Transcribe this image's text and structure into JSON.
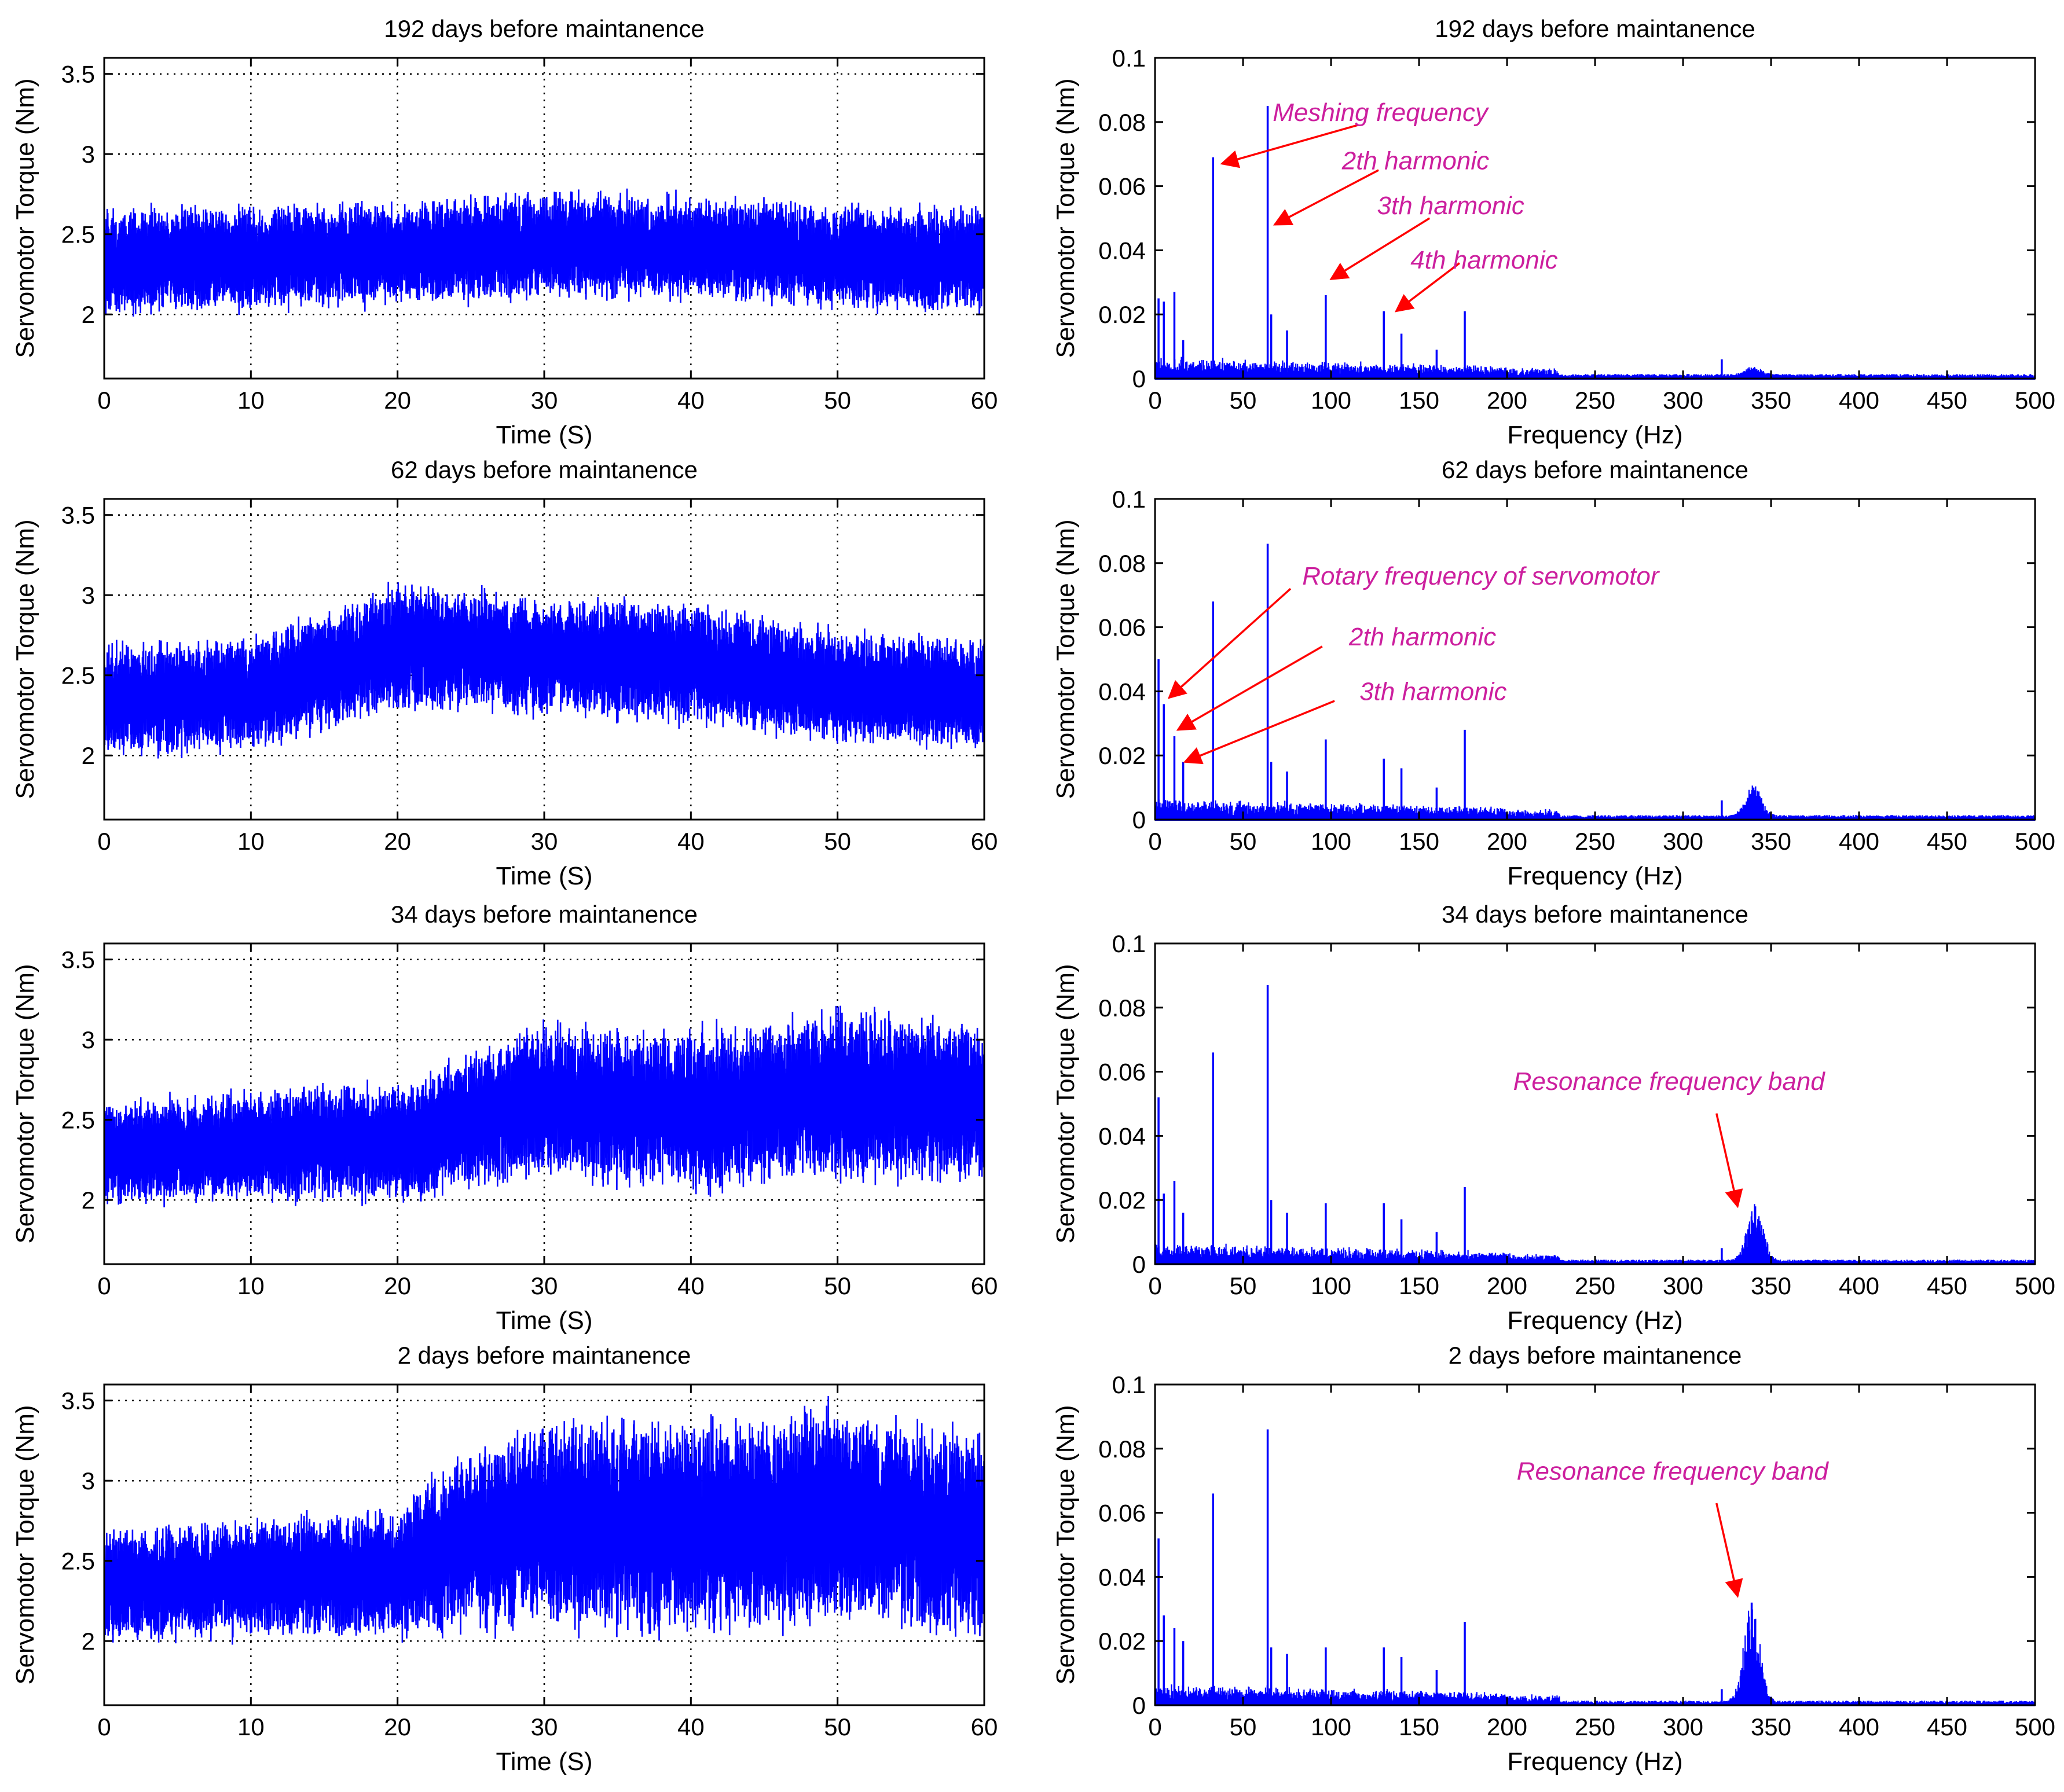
{
  "colors": {
    "signal": "#0000ff",
    "annotation_text": "#cc1f9e",
    "arrow": "#ff0000",
    "axes": "#000000",
    "grid": "#000000"
  },
  "chart_data": [
    {
      "type": "line",
      "title": "192 days before maintanence",
      "xlabel": "Time (S)",
      "ylabel": "Servomotor Torque (Nm)",
      "xlim": [
        0,
        60
      ],
      "ylim": [
        1.6,
        3.6
      ],
      "xticks": [
        "0",
        "10",
        "20",
        "30",
        "40",
        "50",
        "60"
      ],
      "xtick_values": [
        0,
        10,
        20,
        30,
        40,
        50,
        60
      ],
      "yticks": [
        "2",
        "2.5",
        "3",
        "3.5"
      ],
      "ytick_values": [
        2,
        2.5,
        3,
        3.5
      ],
      "grid": true,
      "series": [
        {
          "trend_x": [
            0,
            10,
            20,
            30,
            40,
            50,
            60
          ],
          "trend_y": [
            2.33,
            2.36,
            2.38,
            2.44,
            2.42,
            2.36,
            2.34
          ],
          "spread": [
            0.3,
            0.3,
            0.3,
            0.3,
            0.3,
            0.3,
            0.3
          ]
        }
      ],
      "annotations": []
    },
    {
      "type": "line",
      "title": "192 days before maintanence",
      "xlabel": "Frequency (Hz)",
      "ylabel": "Servomotor Torque (Nm)",
      "xlim": [
        0,
        500
      ],
      "ylim": [
        0,
        0.1
      ],
      "xticks": [
        "0",
        "50",
        "100",
        "150",
        "200",
        "250",
        "300",
        "350",
        "400",
        "450",
        "500"
      ],
      "xtick_values": [
        0,
        50,
        100,
        150,
        200,
        250,
        300,
        350,
        400,
        450,
        500
      ],
      "yticks": [
        "0",
        "0.02",
        "0.04",
        "0.06",
        "0.08",
        "0.1"
      ],
      "ytick_values": [
        0,
        0.02,
        0.04,
        0.06,
        0.08,
        0.1
      ],
      "grid": false,
      "series": [
        {
          "peaks_x": [
            2,
            5,
            11,
            16,
            33,
            64,
            66,
            75,
            97,
            130,
            140,
            160,
            176,
            322,
            340
          ],
          "peaks_y": [
            0.025,
            0.024,
            0.027,
            0.012,
            0.069,
            0.085,
            0.02,
            0.015,
            0.026,
            0.021,
            0.014,
            0.009,
            0.021,
            0.006,
            0.003
          ]
        }
      ],
      "annotations": [
        {
          "text": "Meshing frequency",
          "text_x": 128,
          "text_y": 0.083,
          "arrow_from": [
            115,
            0.079
          ],
          "arrow_to": [
            38,
            0.067
          ]
        },
        {
          "text": "2th harmonic",
          "text_x": 148,
          "text_y": 0.068,
          "arrow_from": [
            127,
            0.065
          ],
          "arrow_to": [
            68,
            0.048
          ]
        },
        {
          "text": "3th harmonic",
          "text_x": 168,
          "text_y": 0.054,
          "arrow_from": [
            156,
            0.05
          ],
          "arrow_to": [
            100,
            0.031
          ]
        },
        {
          "text": "4th harmonic",
          "text_x": 187,
          "text_y": 0.037,
          "arrow_from": [
            173,
            0.036
          ],
          "arrow_to": [
            137,
            0.021
          ]
        }
      ]
    },
    {
      "type": "line",
      "title": "62 days before maintanence",
      "xlabel": "Time (S)",
      "ylabel": "Servomotor Torque (Nm)",
      "xlim": [
        0,
        60
      ],
      "ylim": [
        1.6,
        3.6
      ],
      "xticks": [
        "0",
        "10",
        "20",
        "30",
        "40",
        "50",
        "60"
      ],
      "xtick_values": [
        0,
        10,
        20,
        30,
        40,
        50,
        60
      ],
      "yticks": [
        "2",
        "2.5",
        "3",
        "3.5"
      ],
      "ytick_values": [
        2,
        2.5,
        3,
        3.5
      ],
      "grid": true,
      "series": [
        {
          "trend_x": [
            0,
            10,
            20,
            30,
            40,
            50,
            60
          ],
          "trend_y": [
            2.35,
            2.38,
            2.68,
            2.62,
            2.58,
            2.42,
            2.38
          ],
          "spread": [
            0.32,
            0.32,
            0.36,
            0.34,
            0.34,
            0.33,
            0.32
          ]
        }
      ],
      "annotations": []
    },
    {
      "type": "line",
      "title": "62 days before maintanence",
      "xlabel": "Frequency (Hz)",
      "ylabel": "Servomotor Torque (Nm)",
      "xlim": [
        0,
        500
      ],
      "ylim": [
        0,
        0.1
      ],
      "xticks": [
        "0",
        "50",
        "100",
        "150",
        "200",
        "250",
        "300",
        "350",
        "400",
        "450",
        "500"
      ],
      "xtick_values": [
        0,
        50,
        100,
        150,
        200,
        250,
        300,
        350,
        400,
        450,
        500
      ],
      "yticks": [
        "0",
        "0.02",
        "0.04",
        "0.06",
        "0.08",
        "0.1"
      ],
      "ytick_values": [
        0,
        0.02,
        0.04,
        0.06,
        0.08,
        0.1
      ],
      "grid": false,
      "series": [
        {
          "peaks_x": [
            2,
            5,
            11,
            16,
            33,
            64,
            66,
            75,
            97,
            130,
            140,
            160,
            176,
            322,
            340
          ],
          "peaks_y": [
            0.05,
            0.036,
            0.026,
            0.018,
            0.068,
            0.086,
            0.018,
            0.015,
            0.025,
            0.019,
            0.016,
            0.01,
            0.028,
            0.006,
            0.01
          ]
        }
      ],
      "annotations": [
        {
          "text": "Rotary frequency of servomotor",
          "text_x": 185,
          "text_y": 0.076,
          "arrow_from": [
            77,
            0.072
          ],
          "arrow_to": [
            8,
            0.038
          ]
        },
        {
          "text": "2th harmonic",
          "text_x": 152,
          "text_y": 0.057,
          "arrow_from": [
            95,
            0.054
          ],
          "arrow_to": [
            13,
            0.028
          ]
        },
        {
          "text": "3th harmonic",
          "text_x": 158,
          "text_y": 0.04,
          "arrow_from": [
            102,
            0.037
          ],
          "arrow_to": [
            17,
            0.018
          ]
        }
      ]
    },
    {
      "type": "line",
      "title": "34 days before maintanence",
      "xlabel": "Time (S)",
      "ylabel": "Servomotor Torque (Nm)",
      "xlim": [
        0,
        60
      ],
      "ylim": [
        1.6,
        3.6
      ],
      "xticks": [
        "0",
        "10",
        "20",
        "30",
        "40",
        "50",
        "60"
      ],
      "xtick_values": [
        0,
        10,
        20,
        30,
        40,
        50,
        60
      ],
      "yticks": [
        "2",
        "2.5",
        "3",
        "3.5"
      ],
      "ytick_values": [
        2,
        2.5,
        3,
        3.5
      ],
      "grid": true,
      "series": [
        {
          "trend_x": [
            0,
            10,
            20,
            30,
            40,
            50,
            60
          ],
          "trend_y": [
            2.3,
            2.34,
            2.36,
            2.62,
            2.55,
            2.66,
            2.6
          ],
          "spread": [
            0.3,
            0.32,
            0.34,
            0.44,
            0.46,
            0.5,
            0.46
          ]
        }
      ],
      "annotations": []
    },
    {
      "type": "line",
      "title": "34 days before maintanence",
      "xlabel": "Frequency (Hz)",
      "ylabel": "Servomotor Torque (Nm)",
      "xlim": [
        0,
        500
      ],
      "ylim": [
        0,
        0.1
      ],
      "xticks": [
        "0",
        "50",
        "100",
        "150",
        "200",
        "250",
        "300",
        "350",
        "400",
        "450",
        "500"
      ],
      "xtick_values": [
        0,
        50,
        100,
        150,
        200,
        250,
        300,
        350,
        400,
        450,
        500
      ],
      "yticks": [
        "0",
        "0.02",
        "0.04",
        "0.06",
        "0.08",
        "0.1"
      ],
      "ytick_values": [
        0,
        0.02,
        0.04,
        0.06,
        0.08,
        0.1
      ],
      "grid": false,
      "series": [
        {
          "peaks_x": [
            2,
            5,
            11,
            16,
            33,
            64,
            66,
            75,
            97,
            130,
            140,
            160,
            176,
            322,
            341
          ],
          "peaks_y": [
            0.052,
            0.022,
            0.026,
            0.016,
            0.066,
            0.087,
            0.02,
            0.016,
            0.019,
            0.019,
            0.014,
            0.01,
            0.024,
            0.005,
            0.018
          ]
        }
      ],
      "annotations": [
        {
          "text": "Resonance frequency band",
          "text_x": 292,
          "text_y": 0.057,
          "arrow_from": [
            319,
            0.047
          ],
          "arrow_to": [
            331,
            0.018
          ]
        }
      ]
    },
    {
      "type": "line",
      "title": "2 days before maintanence",
      "xlabel": "Time (S)",
      "ylabel": "Servomotor Torque (Nm)",
      "xlim": [
        0,
        60
      ],
      "ylim": [
        1.6,
        3.6
      ],
      "xticks": [
        "0",
        "10",
        "20",
        "30",
        "40",
        "50",
        "60"
      ],
      "xtick_values": [
        0,
        10,
        20,
        30,
        40,
        50,
        60
      ],
      "yticks": [
        "2",
        "2.5",
        "3",
        "3.5"
      ],
      "ytick_values": [
        2,
        2.5,
        3,
        3.5
      ],
      "grid": true,
      "series": [
        {
          "trend_x": [
            0,
            10,
            20,
            22,
            30,
            40,
            50,
            60
          ],
          "trend_y": [
            2.34,
            2.4,
            2.42,
            2.55,
            2.75,
            2.7,
            2.78,
            2.65
          ],
          "spread": [
            0.32,
            0.34,
            0.36,
            0.46,
            0.6,
            0.62,
            0.62,
            0.6
          ]
        }
      ],
      "annotations": []
    },
    {
      "type": "line",
      "title": "2 days before maintanence",
      "xlabel": "Frequency (Hz)",
      "ylabel": "Servomotor Torque (Nm)",
      "xlim": [
        0,
        500
      ],
      "ylim": [
        0,
        0.1
      ],
      "xticks": [
        "0",
        "50",
        "100",
        "150",
        "200",
        "250",
        "300",
        "350",
        "400",
        "450",
        "500"
      ],
      "xtick_values": [
        0,
        50,
        100,
        150,
        200,
        250,
        300,
        350,
        400,
        450,
        500
      ],
      "yticks": [
        "0",
        "0.02",
        "0.04",
        "0.06",
        "0.08",
        "0.1"
      ],
      "ytick_values": [
        0,
        0.02,
        0.04,
        0.06,
        0.08,
        0.1
      ],
      "grid": false,
      "series": [
        {
          "peaks_x": [
            2,
            5,
            11,
            16,
            33,
            64,
            66,
            75,
            97,
            130,
            140,
            160,
            176,
            322,
            339
          ],
          "peaks_y": [
            0.052,
            0.028,
            0.024,
            0.02,
            0.066,
            0.086,
            0.018,
            0.016,
            0.018,
            0.018,
            0.015,
            0.011,
            0.026,
            0.005,
            0.032
          ]
        }
      ],
      "annotations": [
        {
          "text": "Resonance frequency band",
          "text_x": 294,
          "text_y": 0.073,
          "arrow_from": [
            319,
            0.063
          ],
          "arrow_to": [
            331,
            0.034
          ]
        }
      ]
    }
  ]
}
